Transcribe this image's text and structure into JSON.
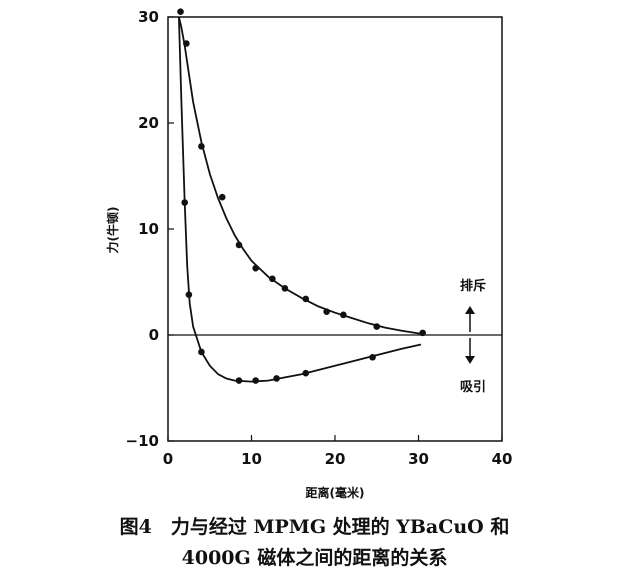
{
  "chart_data": {
    "type": "line",
    "xlabel": "距离(毫米)",
    "ylabel": "力(牛顿)",
    "xlim": [
      0,
      40
    ],
    "ylim": [
      -10,
      30
    ],
    "xticks": [
      0,
      10,
      20,
      30,
      40
    ],
    "yticks": [
      -10,
      0,
      10,
      20,
      30
    ],
    "grid": false,
    "reference_line_y": 0,
    "annotations": {
      "repulsion": "排斥",
      "attraction": "吸引"
    },
    "series": [
      {
        "role": "repulsive",
        "points": [
          [
            2.2,
            27.5
          ],
          [
            4.0,
            17.8
          ],
          [
            6.5,
            13.0
          ],
          [
            8.5,
            8.5
          ],
          [
            10.5,
            6.3
          ],
          [
            12.5,
            5.3
          ],
          [
            14.0,
            4.4
          ],
          [
            16.5,
            3.4
          ],
          [
            19.0,
            2.2
          ],
          [
            21.0,
            1.9
          ],
          [
            25.0,
            0.8
          ],
          [
            30.5,
            0.2
          ]
        ],
        "curve": [
          [
            1.3,
            30
          ],
          [
            1.6,
            29
          ],
          [
            2.0,
            27.3
          ],
          [
            3.0,
            22
          ],
          [
            4.0,
            18.2
          ],
          [
            5.0,
            15.2
          ],
          [
            6.0,
            12.9
          ],
          [
            7.0,
            11.0
          ],
          [
            8.0,
            9.4
          ],
          [
            9.0,
            8.1
          ],
          [
            10.0,
            7.0
          ],
          [
            12.0,
            5.5
          ],
          [
            14.0,
            4.4
          ],
          [
            16.0,
            3.5
          ],
          [
            18.0,
            2.7
          ],
          [
            20.0,
            2.1
          ],
          [
            22.0,
            1.6
          ],
          [
            24.0,
            1.1
          ],
          [
            26.0,
            0.7
          ],
          [
            28.0,
            0.4
          ],
          [
            30.0,
            0.15
          ],
          [
            30.8,
            0.05
          ]
        ]
      },
      {
        "role": "attractive",
        "points": [
          [
            1.5,
            30.5
          ],
          [
            2.0,
            12.5
          ],
          [
            2.5,
            3.8
          ],
          [
            4.0,
            -1.6
          ],
          [
            8.5,
            -4.3
          ],
          [
            10.5,
            -4.3
          ],
          [
            13.0,
            -4.1
          ],
          [
            16.5,
            -3.6
          ],
          [
            24.5,
            -2.1
          ]
        ],
        "curve": [
          [
            1.3,
            30
          ],
          [
            1.6,
            22
          ],
          [
            2.0,
            12.5
          ],
          [
            2.3,
            6.5
          ],
          [
            2.6,
            3.0
          ],
          [
            3.0,
            0.8
          ],
          [
            4.0,
            -1.6
          ],
          [
            5.0,
            -2.9
          ],
          [
            6.0,
            -3.7
          ],
          [
            7.0,
            -4.1
          ],
          [
            8.0,
            -4.3
          ],
          [
            10.0,
            -4.4
          ],
          [
            12.0,
            -4.3
          ],
          [
            14.0,
            -4.0
          ],
          [
            16.0,
            -3.7
          ],
          [
            18.0,
            -3.3
          ],
          [
            20.0,
            -2.9
          ],
          [
            22.0,
            -2.5
          ],
          [
            24.0,
            -2.1
          ],
          [
            26.0,
            -1.7
          ],
          [
            28.0,
            -1.3
          ],
          [
            30.3,
            -0.9
          ]
        ]
      }
    ]
  },
  "caption": {
    "line1": "图4　力与经过 MPMG 处理的 YBaCuO 和",
    "line2": "4000G 磁体之间的距离的关系"
  }
}
